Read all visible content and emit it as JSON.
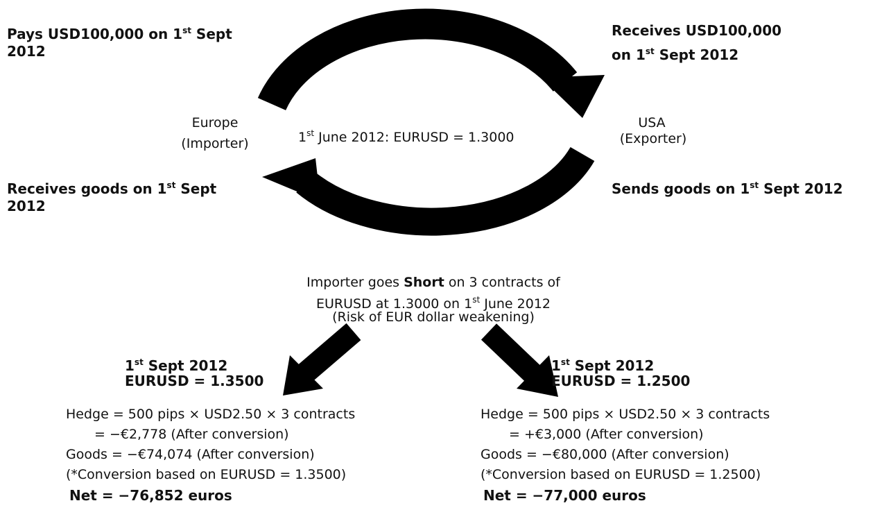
{
  "labels": {
    "pays": [
      "Pays USD100,000 on 1",
      "st",
      " Sept",
      "2012"
    ],
    "receives_usd": [
      "Receives USD100,000",
      "on 1",
      "st",
      " Sept 2012"
    ],
    "receives_goods": [
      "Receives goods on 1",
      "st",
      " Sept",
      "2012"
    ],
    "sends_goods": [
      "Sends goods on 1",
      "st",
      " Sept 2012"
    ]
  },
  "nodes": {
    "europe": [
      "Europe",
      "(Importer)"
    ],
    "usa": [
      "USA",
      "(Exporter)"
    ]
  },
  "center": [
    "1",
    "st",
    " June 2012: EURUSD = 1.3000"
  ],
  "hedge_note": [
    "Importer goes ",
    "Short",
    " on 3 contracts of",
    "EURUSD at 1.3000 on 1",
    "st",
    " June 2012",
    "(Risk of EUR dollar weakening)"
  ],
  "scenarios": [
    {
      "date": [
        "1",
        "st",
        " Sept 2012"
      ],
      "rate": "EURUSD = 1.3500",
      "lines": [
        "Hedge = 500 pips × USD2.50 × 3 contracts",
        "= −€2,778 (After conversion)",
        "Goods = −€74,074 (After conversion)",
        "(*Conversion based on EURUSD = 1.3500)"
      ],
      "net": "Net = −76,852 euros"
    },
    {
      "date": [
        "1",
        "st",
        " Sept 2012"
      ],
      "rate": "EURUSD = 1.2500",
      "lines": [
        "Hedge = 500 pips × USD2.50 × 3 contracts",
        "= +€3,000 (After conversion)",
        "Goods = −€80,000 (After conversion)",
        "(*Conversion based on EURUSD = 1.2500)"
      ],
      "net": "Net = −77,000 euros"
    }
  ]
}
